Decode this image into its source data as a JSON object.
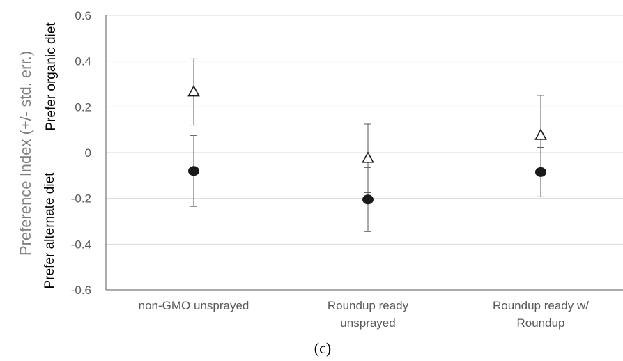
{
  "chart_data": {
    "type": "scatter",
    "categories": [
      [
        "non-GMO unsprayed"
      ],
      [
        "Roundup ready",
        "unsprayed"
      ],
      [
        "Roundup ready w/",
        "Roundup"
      ]
    ],
    "series": [
      {
        "marker": "open-triangle",
        "values": [
          0.265,
          -0.025,
          0.075
        ],
        "errors": [
          0.145,
          0.15,
          0.175
        ]
      },
      {
        "marker": "filled-circle",
        "values": [
          -0.08,
          -0.205,
          -0.085
        ],
        "errors": [
          0.155,
          0.14,
          0.108
        ]
      }
    ],
    "ylim": [
      -0.6,
      0.6
    ],
    "yticks": [
      0.6,
      0.4,
      0.2,
      0,
      -0.2,
      -0.4,
      -0.6
    ],
    "ytick_labels": [
      "0.6",
      "0.4",
      "0.2",
      "0",
      "-0.2",
      "-0.4",
      "-0.6"
    ],
    "ylabel": "Preference Index (+/- std. err.)",
    "ylabel_upper": "Prefer organic diet",
    "ylabel_lower": "Prefer alternate diet",
    "panel_label": "(c)",
    "grid": true,
    "colors": {
      "grid": "#d9d9d9",
      "axis": "#595959",
      "marker": "#1a1a1a",
      "errorbar": "#595959"
    }
  }
}
